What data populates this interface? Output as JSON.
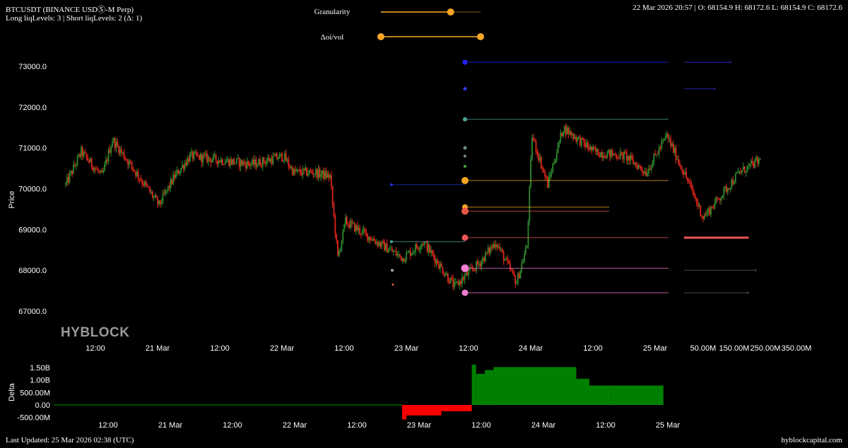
{
  "header": {
    "symbol": "BTCUSDT (BINANCE USDⓈ-M Perp)",
    "liq_levels": "Long liqLevels: 3 | Short liqLevels: 2 (Δ: 1)",
    "ohlc": "22 Mar 2026 20:57 | O: 68154.9 H: 68172.6 L: 68154.9 C: 68172.6"
  },
  "controls": {
    "granularity_label": "Granularity",
    "granularity_value": 0.7,
    "delta_oi_label": "Δoi/vol",
    "delta_oi_range": [
      0.0,
      1.0
    ]
  },
  "logo": "HYBLOCK",
  "footer": {
    "last_updated": "Last Updated: 25 Mar 2026 02:38 (UTC)",
    "site": "hyblockcapital.com"
  },
  "colors": {
    "background": "#000000",
    "candle_up": "#2e8b2e",
    "candle_down": "#e0261c",
    "delta_positive": "#008000",
    "delta_negative": "#ff0000",
    "slider": "#f5a623"
  },
  "chart_data": [
    {
      "type": "candlestick",
      "title": "",
      "ylabel": "Price",
      "ylim": [
        66700,
        73400
      ],
      "y_ticks": [
        "73000.0",
        "72000.0",
        "71000.0",
        "70000.0",
        "69000.0",
        "68000.0",
        "67000.0"
      ],
      "x_tick_labels": [
        "12:00",
        "21 Mar",
        "12:00",
        "22 Mar",
        "12:00",
        "23 Mar",
        "12:00",
        "24 Mar",
        "12:00",
        "25 Mar"
      ],
      "x_range_hours": [
        "20 Mar 00:00",
        "25 Mar 02:38"
      ],
      "price_path": [
        {
          "t": "20 Mar 06:00",
          "p": 70100
        },
        {
          "t": "20 Mar 09:00",
          "p": 70900
        },
        {
          "t": "20 Mar 13:00",
          "p": 70300
        },
        {
          "t": "20 Mar 15:00",
          "p": 71200
        },
        {
          "t": "20 Mar 19:00",
          "p": 70500
        },
        {
          "t": "21 Mar 00:00",
          "p": 69600
        },
        {
          "t": "21 Mar 03:00",
          "p": 70300
        },
        {
          "t": "21 Mar 06:00",
          "p": 70800
        },
        {
          "t": "21 Mar 12:00",
          "p": 70700
        },
        {
          "t": "21 Mar 18:00",
          "p": 70600
        },
        {
          "t": "22 Mar 00:00",
          "p": 70800
        },
        {
          "t": "22 Mar 02:00",
          "p": 70400
        },
        {
          "t": "22 Mar 06:00",
          "p": 70400
        },
        {
          "t": "22 Mar 09:00",
          "p": 70300
        },
        {
          "t": "22 Mar 10:30",
          "p": 68300
        },
        {
          "t": "22 Mar 12:00",
          "p": 69200
        },
        {
          "t": "22 Mar 18:00",
          "p": 68700
        },
        {
          "t": "22 Mar 23:00",
          "p": 68300
        },
        {
          "t": "23 Mar 03:00",
          "p": 68700
        },
        {
          "t": "23 Mar 09:00",
          "p": 67600
        },
        {
          "t": "23 Mar 14:00",
          "p": 68200
        },
        {
          "t": "23 Mar 17:00",
          "p": 68700
        },
        {
          "t": "23 Mar 21:00",
          "p": 67700
        },
        {
          "t": "23 Mar 23:00",
          "p": 68600
        },
        {
          "t": "24 Mar 00:00",
          "p": 71300
        },
        {
          "t": "24 Mar 03:00",
          "p": 70100
        },
        {
          "t": "24 Mar 06:00",
          "p": 71500
        },
        {
          "t": "24 Mar 12:00",
          "p": 70900
        },
        {
          "t": "24 Mar 18:00",
          "p": 70800
        },
        {
          "t": "24 Mar 22:00",
          "p": 70400
        },
        {
          "t": "25 Mar 02:00",
          "p": 71300
        },
        {
          "t": "25 Mar 06:00",
          "p": 70200
        },
        {
          "t": "25 Mar 09:00",
          "p": 69300
        },
        {
          "t": "25 Mar 11:00",
          "p": 69600
        },
        {
          "t": "25 Mar 16:00",
          "p": 70400
        },
        {
          "t": "25 Mar 20:00",
          "p": 70700
        }
      ],
      "liq_levels": [
        {
          "price": 73100,
          "color": "#2222ff",
          "size": 7
        },
        {
          "price": 72450,
          "color": "#2a3de6",
          "size": 5
        },
        {
          "price": 71700,
          "color": "#4aa89a",
          "size": 6
        },
        {
          "price": 71000,
          "color": "#6c8f8a",
          "size": 5
        },
        {
          "price": 70800,
          "color": "#7a8f8a",
          "size": 4
        },
        {
          "price": 70550,
          "color": "#44aa44",
          "size": 4
        },
        {
          "price": 70200,
          "color": "#f5a623",
          "size": 10
        },
        {
          "price": 70100,
          "color": "#1f2fcf",
          "size": 4
        },
        {
          "price": 69550,
          "color": "#f5a623",
          "size": 8
        },
        {
          "price": 69450,
          "color": "#e8584a",
          "size": 10
        },
        {
          "price": 68800,
          "color": "#ee5555",
          "size": 9
        },
        {
          "price": 68700,
          "color": "#4aa89a",
          "size": 4
        },
        {
          "price": 68050,
          "color": "#ef7fcf",
          "size": 11
        },
        {
          "price": 68000,
          "color": "#aaaaaa",
          "size": 4
        },
        {
          "price": 67650,
          "color": "#e8584a",
          "size": 3
        },
        {
          "price": 67450,
          "color": "#ef7fcf",
          "size": 9
        }
      ],
      "liq_volume_axis": [
        "50.00M",
        "150.00M",
        "250.00M",
        "350.00M"
      ],
      "liq_volume_bars": [
        {
          "price": 73100,
          "value": 150,
          "color": "#2222aa"
        },
        {
          "price": 72450,
          "value": 98,
          "color": "#2222aa"
        },
        {
          "price": 68800,
          "value": 208,
          "color": "#ee5555"
        },
        {
          "price": 68000,
          "value": 230,
          "color": "#5a4060"
        },
        {
          "price": 67450,
          "value": 205,
          "color": "#5a4060"
        }
      ]
    },
    {
      "type": "area",
      "ylabel": "Delta",
      "ylim": [
        -620000000,
        1650000000
      ],
      "y_ticks": [
        "1.50B",
        "1.00B",
        "500.00M",
        "0.00",
        "-500.00M"
      ],
      "x_tick_labels": [
        "12:00",
        "21 Mar",
        "12:00",
        "22 Mar",
        "12:00",
        "23 Mar",
        "12:00",
        "24 Mar",
        "12:00",
        "25 Mar"
      ],
      "steps": [
        {
          "t_from": "20 Mar 00:00",
          "t_to": "23 Mar 08:00",
          "value": 0
        },
        {
          "t_from": "23 Mar 08:00",
          "t_to": "23 Mar 09:00",
          "value": -580000000
        },
        {
          "t_from": "23 Mar 09:00",
          "t_to": "23 Mar 17:00",
          "value": -420000000
        },
        {
          "t_from": "23 Mar 17:00",
          "t_to": "24 Mar 00:00",
          "value": -250000000
        },
        {
          "t_from": "24 Mar 00:00",
          "t_to": "24 Mar 01:00",
          "value": 1620000000
        },
        {
          "t_from": "24 Mar 01:00",
          "t_to": "24 Mar 03:00",
          "value": 1250000000
        },
        {
          "t_from": "24 Mar 03:00",
          "t_to": "24 Mar 05:00",
          "value": 1400000000
        },
        {
          "t_from": "24 Mar 05:00",
          "t_to": "25 Mar 00:00",
          "value": 1520000000
        },
        {
          "t_from": "25 Mar 00:00",
          "t_to": "25 Mar 03:00",
          "value": 1050000000
        },
        {
          "t_from": "25 Mar 03:00",
          "t_to": "25 Mar 08:00",
          "value": 780000000
        },
        {
          "t_from": "25 Mar 08:00",
          "t_to": "25 Mar 20:00",
          "value": 780000000
        }
      ]
    }
  ]
}
